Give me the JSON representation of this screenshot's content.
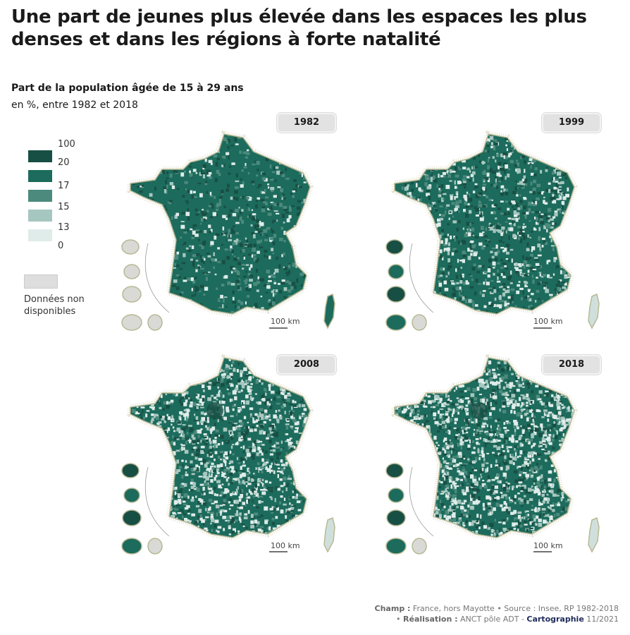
{
  "title": "Une part de jeunes plus élevée dans les espaces les plus denses et dans les régions à forte natalité",
  "subtitle": "Part de la population âgée de 15 à 29 ans",
  "unit_line": "en %, entre 1982 et 2018",
  "legend": {
    "breaks": [
      "100",
      "20",
      "17",
      "15",
      "13",
      "0"
    ],
    "colors": [
      "#184f44",
      "#1c6b5c",
      "#4c8a7d",
      "#a6c7bf",
      "#dfece9"
    ],
    "na_color": "#dedede",
    "na_label_1": "Données non",
    "na_label_2": "disponibles"
  },
  "maps": [
    {
      "year": "1982",
      "scale": "100 km"
    },
    {
      "year": "1999",
      "scale": "100 km"
    },
    {
      "year": "2008",
      "scale": "100 km"
    },
    {
      "year": "2018",
      "scale": "100 km"
    }
  ],
  "footer": {
    "l1_b": "Champ :",
    "l1": " France, hors Mayotte • Source : Insee, RP 1982-2018",
    "l2_a": "• ",
    "l2_b": "Réalisation :",
    "l2": " ANCT pôle ADT - ",
    "l2_c": "Cartographie",
    "l2_d": " 11/2021"
  }
}
